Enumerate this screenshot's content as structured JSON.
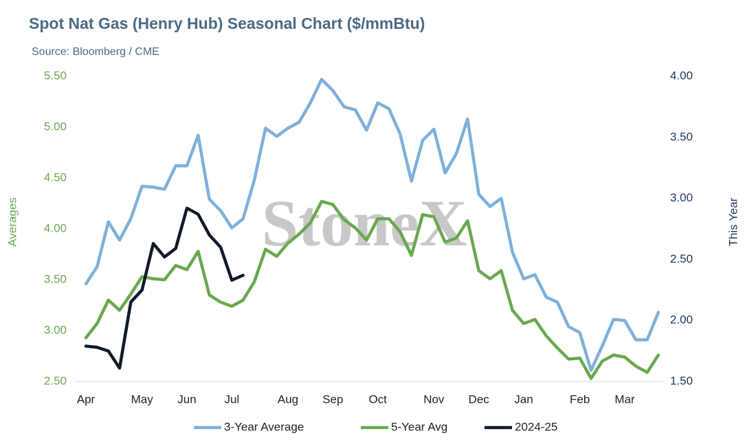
{
  "chart_data": {
    "type": "line",
    "title": "Spot Nat Gas (Henry Hub) Seasonal Chart ($/mmBtu)",
    "subtitle": "Source: Bloomberg / CME",
    "watermark": "StoneX",
    "y_label": "Averages",
    "y2_label": "This Year",
    "categories": [
      "Apr",
      null,
      null,
      null,
      null,
      "May",
      null,
      null,
      null,
      "Jun",
      null,
      null,
      null,
      "Jul",
      null,
      null,
      null,
      null,
      "Aug",
      null,
      null,
      null,
      "Sep",
      null,
      null,
      null,
      "Oct",
      null,
      null,
      null,
      null,
      "Nov",
      null,
      null,
      null,
      "Dec",
      null,
      null,
      null,
      "Jan",
      null,
      null,
      null,
      null,
      "Feb",
      null,
      null,
      null,
      "Mar",
      null,
      null,
      null
    ],
    "ylim": [
      2.5,
      5.5
    ],
    "yticks": [
      {
        "value": 2.5,
        "label": "2.50"
      },
      {
        "value": 3,
        "label": "3.00"
      },
      {
        "value": 3.5,
        "label": "3.50"
      },
      {
        "value": 4,
        "label": "4.00"
      },
      {
        "value": 4.5,
        "label": "4.50"
      },
      {
        "value": 5,
        "label": "5.00"
      },
      {
        "value": 5.5,
        "label": "5.50"
      }
    ],
    "y2lim": [
      1.5,
      4
    ],
    "y2ticks": [
      {
        "value": 1.5,
        "label": "1.50"
      },
      {
        "value": 2,
        "label": "2.00"
      },
      {
        "value": 2.5,
        "label": "2.50"
      },
      {
        "value": 3,
        "label": "3.00"
      },
      {
        "value": 3.5,
        "label": "3.50"
      },
      {
        "value": 4,
        "label": "4.00"
      }
    ],
    "grid": false,
    "legend": "bottom",
    "series": [
      {
        "name": "3-Year Average",
        "color": "#7eb0da",
        "values": [
          3.46,
          3.63,
          4.07,
          3.89,
          4.1,
          4.42,
          4.41,
          4.39,
          4.62,
          4.62,
          4.92,
          4.29,
          4.18,
          4.01,
          4.1,
          4.48,
          4.99,
          4.91,
          4.99,
          5.05,
          5.24,
          5.47,
          5.36,
          5.2,
          5.17,
          4.97,
          5.24,
          5.18,
          4.93,
          4.47,
          4.87,
          4.98,
          4.55,
          4.74,
          5.08,
          4.34,
          4.22,
          4.3,
          3.77,
          3.51,
          3.55,
          3.33,
          3.28,
          3.04,
          2.98,
          2.61,
          2.85,
          3.11,
          3.1,
          2.91,
          2.91,
          3.18
        ]
      },
      {
        "name": "5-Year Avg",
        "color": "#6aa84f",
        "values": [
          2.93,
          3.07,
          3.3,
          3.2,
          3.36,
          3.53,
          3.51,
          3.5,
          3.64,
          3.6,
          3.78,
          3.35,
          3.28,
          3.24,
          3.3,
          3.48,
          3.8,
          3.73,
          3.86,
          3.95,
          4.06,
          4.27,
          4.24,
          4.09,
          4.01,
          3.89,
          4.1,
          4.1,
          3.97,
          3.74,
          4.14,
          4.12,
          3.87,
          3.91,
          4.08,
          3.59,
          3.51,
          3.59,
          3.2,
          3.07,
          3.11,
          2.95,
          2.83,
          2.72,
          2.73,
          2.53,
          2.7,
          2.76,
          2.74,
          2.65,
          2.59,
          2.76
        ]
      },
      {
        "name": "2024-25",
        "color": "#0e1a28",
        "axis": "y2",
        "values": [
          1.79,
          1.78,
          1.75,
          1.61,
          2.15,
          2.25,
          2.63,
          2.52,
          2.59,
          2.92,
          2.87,
          2.7,
          2.6,
          2.33,
          2.37,
          null,
          null,
          null,
          null,
          null,
          null,
          null,
          null,
          null,
          null,
          null,
          null,
          null,
          null,
          null,
          null,
          null,
          null,
          null,
          null,
          null,
          null,
          null,
          null,
          null,
          null,
          null,
          null,
          null,
          null,
          null,
          null,
          null,
          null,
          null,
          null,
          null
        ]
      }
    ]
  }
}
